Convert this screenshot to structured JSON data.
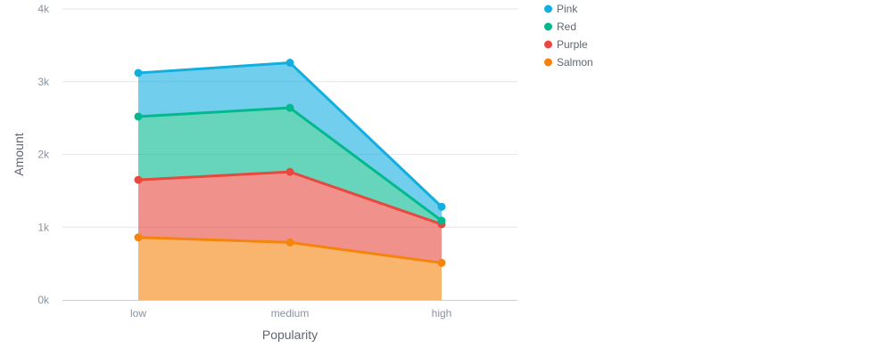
{
  "chart_data": {
    "type": "area",
    "stacked": true,
    "categories": [
      "low",
      "medium",
      "high"
    ],
    "series": [
      {
        "name": "Salmon",
        "values": [
          860,
          790,
          510
        ],
        "color": "#f5840c"
      },
      {
        "name": "Purple",
        "values": [
          790,
          970,
          530
        ],
        "color": "#e8483d"
      },
      {
        "name": "Red",
        "values": [
          870,
          880,
          50
        ],
        "color": "#02b98d"
      },
      {
        "name": "Pink",
        "values": [
          600,
          620,
          190
        ],
        "color": "#13aee0"
      }
    ],
    "xlabel": "Popularity",
    "ylabel": "Amount",
    "ylim": [
      0,
      4000
    ],
    "yticks": [
      "0k",
      "1k",
      "2k",
      "3k",
      "4k"
    ],
    "grid": true,
    "legend_position": "right-top",
    "legend_order": [
      "Pink",
      "Red",
      "Purple",
      "Salmon"
    ]
  }
}
